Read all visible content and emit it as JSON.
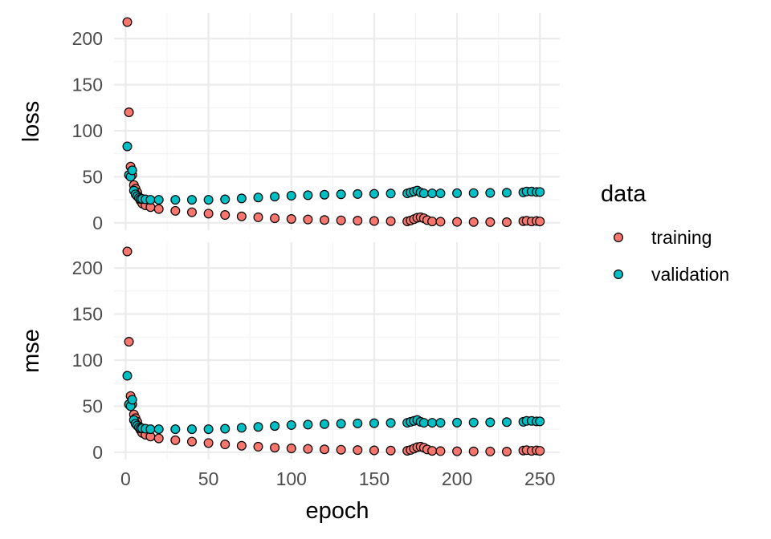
{
  "chart_data": {
    "type": "scatter",
    "facet_strip_position": "left",
    "xlabel": "epoch",
    "x_ticks": [
      0,
      50,
      100,
      150,
      200,
      250
    ],
    "xlim": [
      -7,
      262
    ],
    "legend": {
      "title": "data",
      "placement": "right",
      "entries": [
        {
          "label": "training",
          "color": "#F8766D"
        },
        {
          "label": "validation",
          "color": "#00BFC4"
        }
      ]
    },
    "panels": [
      {
        "label": "loss",
        "ylim": [
          -8,
          228
        ],
        "y_ticks": [
          0,
          50,
          100,
          150,
          200
        ],
        "series": [
          {
            "name": "training",
            "color": "#F8766D",
            "x": [
              1,
              2,
              3,
              4,
              5,
              6,
              7,
              8,
              9,
              10,
              12,
              15,
              20,
              30,
              40,
              50,
              60,
              70,
              80,
              90,
              100,
              110,
              120,
              130,
              140,
              150,
              160,
              170,
              172,
              174,
              176,
              178,
              180,
              182,
              185,
              190,
              200,
              210,
              220,
              230,
              240,
              242,
              245,
              248,
              250
            ],
            "y": [
              218,
              120,
              61,
              52,
              41,
              37,
              33,
              28,
              24,
              21,
              19,
              17,
              15,
              13,
              11.5,
              10,
              8.5,
              7,
              6,
              5,
              4.2,
              3.6,
              3.1,
              2.7,
              2.3,
              2,
              1.8,
              1.6,
              2.5,
              4,
              5.5,
              6,
              5,
              3,
              1.5,
              1.2,
              1,
              0.9,
              0.8,
              0.7,
              1.8,
              2.2,
              1.5,
              2,
              1.5
            ]
          },
          {
            "name": "validation",
            "color": "#00BFC4",
            "x": [
              1,
              2,
              3,
              4,
              5,
              6,
              7,
              8,
              9,
              10,
              12,
              15,
              20,
              30,
              40,
              50,
              60,
              70,
              80,
              90,
              100,
              110,
              120,
              130,
              140,
              150,
              160,
              170,
              172,
              174,
              176,
              178,
              180,
              185,
              190,
              200,
              210,
              220,
              230,
              240,
              242,
              245,
              248,
              250
            ],
            "y": [
              83,
              52,
              50,
              57,
              35,
              31,
              29,
              27,
              26,
              26,
              25.5,
              25,
              25,
              25,
              25,
              25,
              25.5,
              26.5,
              27.5,
              28.5,
              29.5,
              30,
              30.5,
              31,
              31.3,
              31.5,
              31.8,
              32,
              33,
              34,
              35,
              33,
              32,
              32,
              32,
              32.2,
              32.3,
              32.5,
              32.7,
              33,
              34,
              34,
              33.5,
              33.5
            ]
          }
        ]
      },
      {
        "label": "mse",
        "ylim": [
          -8,
          228
        ],
        "y_ticks": [
          0,
          50,
          100,
          150,
          200
        ],
        "series": [
          {
            "name": "training",
            "color": "#F8766D",
            "x": [
              1,
              2,
              3,
              4,
              5,
              6,
              7,
              8,
              9,
              10,
              12,
              15,
              20,
              30,
              40,
              50,
              60,
              70,
              80,
              90,
              100,
              110,
              120,
              130,
              140,
              150,
              160,
              170,
              172,
              174,
              176,
              178,
              180,
              182,
              185,
              190,
              200,
              210,
              220,
              230,
              240,
              242,
              245,
              248,
              250
            ],
            "y": [
              218,
              120,
              61,
              52,
              41,
              37,
              33,
              28,
              24,
              21,
              19,
              17,
              15,
              13,
              11.5,
              10,
              8.5,
              7,
              6,
              5,
              4.2,
              3.6,
              3.1,
              2.7,
              2.3,
              2,
              1.8,
              1.6,
              2.5,
              4,
              5.5,
              6,
              5,
              3,
              1.5,
              1.2,
              1,
              0.9,
              0.8,
              0.7,
              1.8,
              2.2,
              1.5,
              2,
              1.5
            ]
          },
          {
            "name": "validation",
            "color": "#00BFC4",
            "x": [
              1,
              2,
              3,
              4,
              5,
              6,
              7,
              8,
              9,
              10,
              12,
              15,
              20,
              30,
              40,
              50,
              60,
              70,
              80,
              90,
              100,
              110,
              120,
              130,
              140,
              150,
              160,
              170,
              172,
              174,
              176,
              178,
              180,
              185,
              190,
              200,
              210,
              220,
              230,
              240,
              242,
              245,
              248,
              250
            ],
            "y": [
              83,
              52,
              50,
              57,
              35,
              31,
              29,
              27,
              26,
              26,
              25.5,
              25,
              25,
              25,
              25,
              25,
              25.5,
              26.5,
              27.5,
              28.5,
              29.5,
              30,
              30.5,
              31,
              31.3,
              31.5,
              31.8,
              32,
              33,
              34,
              35,
              33,
              32,
              32,
              32,
              32.2,
              32.3,
              32.5,
              32.7,
              33,
              34,
              34,
              33.5,
              33.5
            ]
          }
        ]
      }
    ]
  }
}
